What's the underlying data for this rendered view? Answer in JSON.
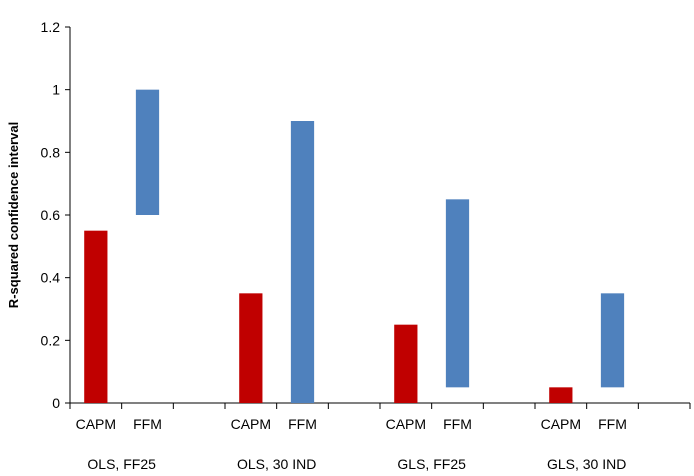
{
  "chart_data": {
    "type": "bar",
    "subtype": "floating-range",
    "ylabel": "R-squared confidence interval",
    "ylim": [
      0,
      1.2
    ],
    "yticks": [
      "0",
      "0.2",
      "0.4",
      "0.6",
      "0.8",
      "1",
      "1.2"
    ],
    "groups": [
      "OLS, FF25",
      "OLS, 30 IND",
      "GLS, FF25",
      "GLS, 30 IND"
    ],
    "categories": [
      "CAPM",
      "FFM"
    ],
    "series": [
      {
        "name": "CAPM",
        "color": "#c00000",
        "ranges": [
          [
            0,
            0.55
          ],
          [
            0,
            0.35
          ],
          [
            0,
            0.25
          ],
          [
            0,
            0.05
          ]
        ]
      },
      {
        "name": "FFM",
        "color": "#4f81bd",
        "ranges": [
          [
            0.6,
            1.0
          ],
          [
            0,
            0.9
          ],
          [
            0.05,
            0.65
          ],
          [
            0.05,
            0.35
          ]
        ]
      }
    ],
    "grid": false,
    "legend": "none"
  }
}
